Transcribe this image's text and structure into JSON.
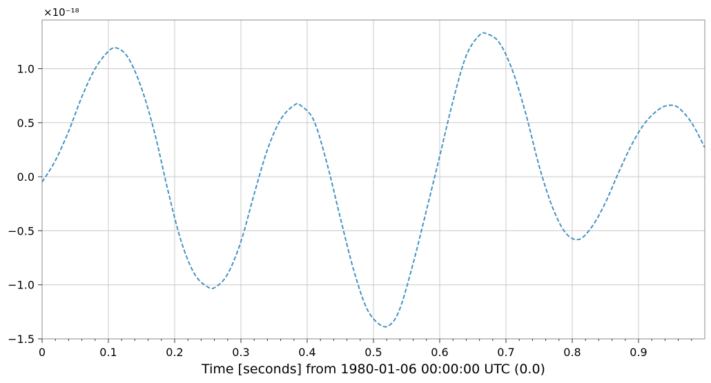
{
  "chart_data": {
    "type": "line",
    "title": "",
    "xlabel": "Time [seconds] from 1980-01-06 00:00:00 UTC (0.0)",
    "ylabel": "",
    "y_offset_text": "×10⁻¹⁸",
    "xlim": [
      0,
      1.0
    ],
    "ylim": [
      -1.5,
      1.45
    ],
    "x_ticks": [
      0,
      0.1,
      0.2,
      0.3,
      0.4,
      0.5,
      0.6,
      0.7,
      0.8,
      0.9
    ],
    "x_tick_labels": [
      "0",
      "0.1",
      "0.2",
      "0.3",
      "0.4",
      "0.5",
      "0.6",
      "0.7",
      "0.8",
      "0.9"
    ],
    "y_ticks": [
      1.0,
      0.5,
      0.0,
      -0.5,
      -1.0,
      -1.5
    ],
    "y_tick_labels": [
      "1.0",
      "0.5",
      "0.0",
      "−0.5",
      "−1.0",
      "−1.5"
    ],
    "grid": true,
    "legend": "none",
    "series": [
      {
        "line_style": "dashed",
        "color": "#4492c4",
        "x": [
          0.0,
          0.02,
          0.04,
          0.06,
          0.08,
          0.1,
          0.113,
          0.13,
          0.15,
          0.17,
          0.19,
          0.21,
          0.23,
          0.25,
          0.262,
          0.28,
          0.3,
          0.32,
          0.34,
          0.36,
          0.38,
          0.39,
          0.41,
          0.43,
          0.45,
          0.47,
          0.49,
          0.51,
          0.525,
          0.54,
          0.56,
          0.58,
          0.6,
          0.62,
          0.64,
          0.66,
          0.672,
          0.69,
          0.71,
          0.73,
          0.75,
          0.77,
          0.79,
          0.81,
          0.83,
          0.85,
          0.87,
          0.89,
          0.91,
          0.93,
          0.945,
          0.96,
          0.98,
          1.0
        ],
        "y": [
          -0.05,
          0.15,
          0.42,
          0.74,
          1.0,
          1.16,
          1.19,
          1.1,
          0.82,
          0.4,
          -0.13,
          -0.6,
          -0.9,
          -1.02,
          -1.02,
          -0.9,
          -0.6,
          -0.16,
          0.25,
          0.53,
          0.66,
          0.66,
          0.52,
          0.12,
          -0.38,
          -0.86,
          -1.22,
          -1.37,
          -1.37,
          -1.22,
          -0.8,
          -0.31,
          0.19,
          0.7,
          1.12,
          1.31,
          1.32,
          1.24,
          0.98,
          0.58,
          0.1,
          -0.28,
          -0.52,
          -0.58,
          -0.46,
          -0.24,
          0.04,
          0.3,
          0.5,
          0.62,
          0.66,
          0.64,
          0.5,
          0.27
        ]
      }
    ]
  }
}
